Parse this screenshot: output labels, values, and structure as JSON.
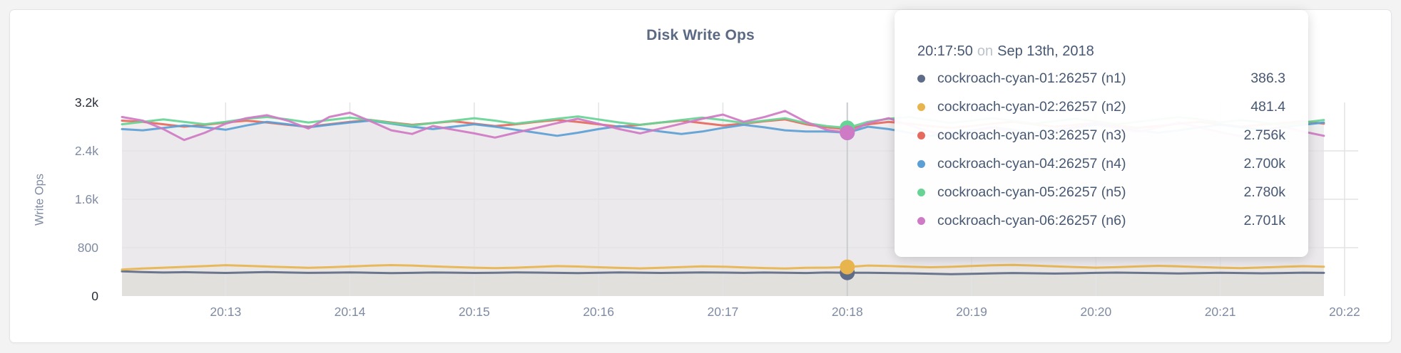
{
  "colors": {
    "page_background": "#f3f3f4",
    "card_background": "#ffffff",
    "title_text": "#5b6a84",
    "axis_tick": "#7f8ba3",
    "axis_tick_strong": "#272c38",
    "gridline": "#e3e3e5",
    "hover_line": "#c9cdd1",
    "tooltip_text": "#475872",
    "tooltip_muted": "#bcc2cb"
  },
  "tooltip": {
    "time": "20:17:50",
    "conj": "on",
    "date": "Sep 13th, 2018",
    "rows": [
      {
        "name": "cockroach-cyan-01:26257 (n1)",
        "value": "386.3",
        "color": "#5f6c87"
      },
      {
        "name": "cockroach-cyan-02:26257 (n2)",
        "value": "481.4",
        "color": "#e7b44e"
      },
      {
        "name": "cockroach-cyan-03:26257 (n3)",
        "value": "2.756k",
        "color": "#e5695d"
      },
      {
        "name": "cockroach-cyan-04:26257 (n4)",
        "value": "2.700k",
        "color": "#5b9fd5"
      },
      {
        "name": "cockroach-cyan-05:26257 (n5)",
        "value": "2.780k",
        "color": "#67d495"
      },
      {
        "name": "cockroach-cyan-06:26257 (n6)",
        "value": "2.701k",
        "color": "#cf7ac4"
      }
    ]
  },
  "chart_data": {
    "type": "line",
    "title": "Disk Write Ops",
    "ylabel": "Write Ops",
    "ylim": [
      0,
      3200
    ],
    "grid": true,
    "yticks": [
      {
        "value": 0,
        "label": "0",
        "strong": true,
        "gridline": false
      },
      {
        "value": 800,
        "label": "800",
        "strong": false,
        "gridline": true
      },
      {
        "value": 1600,
        "label": "1.6k",
        "strong": false,
        "gridline": true
      },
      {
        "value": 2400,
        "label": "2.4k",
        "strong": false,
        "gridline": true
      },
      {
        "value": 3200,
        "label": "3.2k",
        "strong": true,
        "gridline": false
      }
    ],
    "x_start": "20:12:10",
    "x_interval_seconds": 10,
    "xticks": [
      "20:13",
      "20:14",
      "20:15",
      "20:16",
      "20:17",
      "20:18",
      "20:19",
      "20:20",
      "20:21",
      "20:22"
    ],
    "hover": {
      "time": "20:17:50",
      "index": 35
    },
    "series": [
      {
        "name": "cockroach-cyan-01:26257 (n1)",
        "node": "n1",
        "color": "#5f6c87",
        "values": [
          408,
          398,
          390,
          395,
          388,
          382,
          390,
          396,
          389,
          383,
          387,
          392,
          386,
          380,
          384,
          390,
          387,
          382,
          386,
          391,
          388,
          383,
          379,
          385,
          391,
          387,
          382,
          387,
          392,
          388,
          384,
          389,
          385,
          381,
          389,
          386.3,
          386,
          381,
          377,
          370,
          362,
          368,
          375,
          381,
          377,
          372,
          377,
          383,
          388,
          384,
          379,
          374,
          379,
          385,
          381,
          377,
          381,
          387,
          383
        ]
      },
      {
        "name": "cockroach-cyan-02:26257 (n2)",
        "node": "n2",
        "color": "#e7b44e",
        "values": [
          438,
          455,
          470,
          482,
          495,
          510,
          500,
          488,
          478,
          468,
          476,
          490,
          502,
          512,
          505,
          492,
          480,
          470,
          462,
          470,
          482,
          495,
          488,
          476,
          466,
          458,
          468,
          480,
          492,
          486,
          474,
          464,
          456,
          468,
          470,
          481.4,
          505,
          498,
          486,
          476,
          484,
          496,
          508,
          515,
          505,
          492,
          480,
          470,
          478,
          490,
          500,
          492,
          480,
          470,
          462,
          472,
          484,
          494,
          486
        ]
      },
      {
        "name": "cockroach-cyan-03:26257 (n3)",
        "node": "n3",
        "color": "#e5695d",
        "values": [
          2900,
          2880,
          2840,
          2800,
          2830,
          2870,
          2900,
          2870,
          2830,
          2800,
          2840,
          2880,
          2910,
          2870,
          2830,
          2860,
          2890,
          2850,
          2810,
          2840,
          2880,
          2910,
          2880,
          2840,
          2800,
          2830,
          2870,
          2900,
          2860,
          2820,
          2850,
          2890,
          2920,
          2840,
          2790,
          2756,
          2840,
          2880,
          2850,
          2810,
          2780,
          2810,
          2850,
          2880,
          2840,
          2800,
          2830,
          2860,
          2820,
          2780,
          2810,
          2850,
          2880,
          2840,
          2800,
          2830,
          2860,
          2890,
          2850
        ]
      },
      {
        "name": "cockroach-cyan-04:26257 (n4)",
        "node": "n4",
        "color": "#5b9fd5",
        "values": [
          2760,
          2740,
          2780,
          2820,
          2790,
          2750,
          2820,
          2880,
          2840,
          2790,
          2830,
          2870,
          2900,
          2850,
          2800,
          2760,
          2800,
          2840,
          2800,
          2750,
          2700,
          2650,
          2700,
          2760,
          2810,
          2770,
          2720,
          2680,
          2720,
          2780,
          2830,
          2790,
          2740,
          2720,
          2720,
          2700,
          2800,
          2760,
          2700,
          2650,
          2690,
          2740,
          2790,
          2750,
          2700,
          2740,
          2790,
          2830,
          2790,
          2740,
          2700,
          2740,
          2790,
          2830,
          2790,
          2750,
          2790,
          2830,
          2870
        ]
      },
      {
        "name": "cockroach-cyan-05:26257 (n5)",
        "node": "n5",
        "color": "#67d495",
        "values": [
          2840,
          2880,
          2920,
          2880,
          2840,
          2880,
          2930,
          2960,
          2920,
          2870,
          2910,
          2950,
          2910,
          2860,
          2820,
          2860,
          2900,
          2940,
          2900,
          2850,
          2890,
          2930,
          2970,
          2920,
          2870,
          2830,
          2870,
          2910,
          2950,
          2910,
          2860,
          2900,
          2940,
          2860,
          2810,
          2780,
          2880,
          2930,
          2960,
          2910,
          2860,
          2900,
          2940,
          2900,
          2850,
          2890,
          2930,
          2890,
          2840,
          2880,
          2920,
          2960,
          2920,
          2870,
          2910,
          2870,
          2830,
          2870,
          2910
        ]
      },
      {
        "name": "cockroach-cyan-06:26257 (n6)",
        "node": "n6",
        "color": "#cf7ac4",
        "values": [
          2960,
          2900,
          2760,
          2580,
          2700,
          2850,
          2940,
          2990,
          2900,
          2770,
          2960,
          3030,
          2890,
          2740,
          2680,
          2810,
          2750,
          2690,
          2620,
          2700,
          2780,
          2860,
          2930,
          2850,
          2760,
          2690,
          2770,
          2850,
          2930,
          3000,
          2880,
          2960,
          3060,
          2880,
          2750,
          2701,
          2860,
          2940,
          2820,
          2720,
          2630,
          2710,
          2790,
          2710,
          2630,
          2710,
          2790,
          2870,
          2790,
          2710,
          2790,
          2870,
          2790,
          2710,
          2640,
          2720,
          2800,
          2720,
          2650
        ]
      }
    ]
  }
}
